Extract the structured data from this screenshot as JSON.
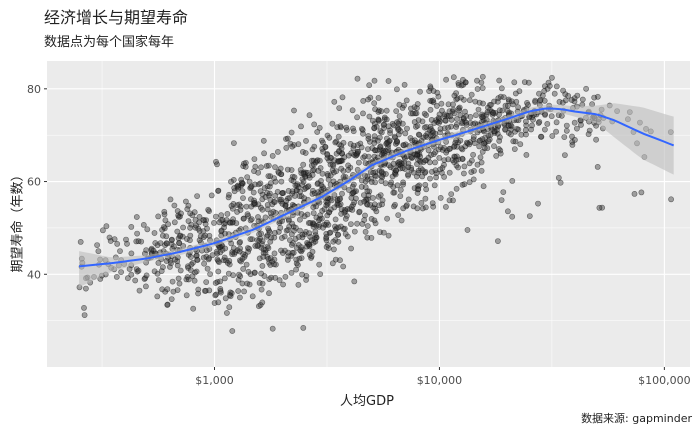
{
  "chart_data": {
    "type": "scatter",
    "title": "经济增长与期望寿命",
    "subtitle": "数据点为每个国家每年",
    "xlabel": "人均GDP",
    "ylabel": "期望寿命（年数）",
    "caption": "数据来源: gapminder",
    "x_scale": "log10",
    "xlim": [
      180,
      130000
    ],
    "ylim": [
      20,
      86
    ],
    "x_ticks": [
      1000,
      10000,
      100000
    ],
    "x_tick_labels": [
      "$1,000",
      "$10,000",
      "$100,000"
    ],
    "y_ticks": [
      40,
      60,
      80
    ],
    "y_tick_labels": [
      "40",
      "60",
      "80"
    ],
    "point_color": "#333333",
    "smooth_color": "#3366FF",
    "band_color": "#bdbdbd",
    "panel_color": "#ebebeb",
    "point_count": 1704,
    "smooth_x": [
      250,
      350,
      500,
      700,
      1000,
      1500,
      2000,
      3000,
      4000,
      5000,
      7000,
      10000,
      12000,
      15000,
      20000,
      25000,
      30000,
      35000,
      40000,
      50000,
      60000,
      80000,
      110000
    ],
    "smooth_y": [
      41.7,
      42.4,
      43.4,
      44.8,
      46.7,
      49.7,
      52.6,
      56.7,
      60.3,
      63.5,
      66.5,
      69.0,
      70.1,
      71.6,
      73.5,
      75.1,
      75.8,
      75.6,
      75.1,
      74.5,
      73.2,
      70.4,
      67.8
    ],
    "band_upper": [
      45.0,
      43.6,
      44.1,
      45.5,
      47.4,
      50.4,
      53.3,
      57.4,
      61.0,
      64.2,
      67.2,
      69.7,
      70.8,
      72.3,
      74.2,
      75.9,
      76.6,
      76.5,
      76.2,
      76.4,
      76.9,
      76.0,
      74.0
    ],
    "band_lower": [
      37.2,
      40.6,
      42.7,
      44.1,
      46.0,
      49.0,
      51.9,
      56.0,
      59.6,
      62.8,
      65.8,
      68.3,
      69.4,
      70.9,
      72.8,
      74.3,
      75.0,
      74.7,
      74.0,
      72.6,
      69.5,
      64.8,
      61.5
    ]
  }
}
